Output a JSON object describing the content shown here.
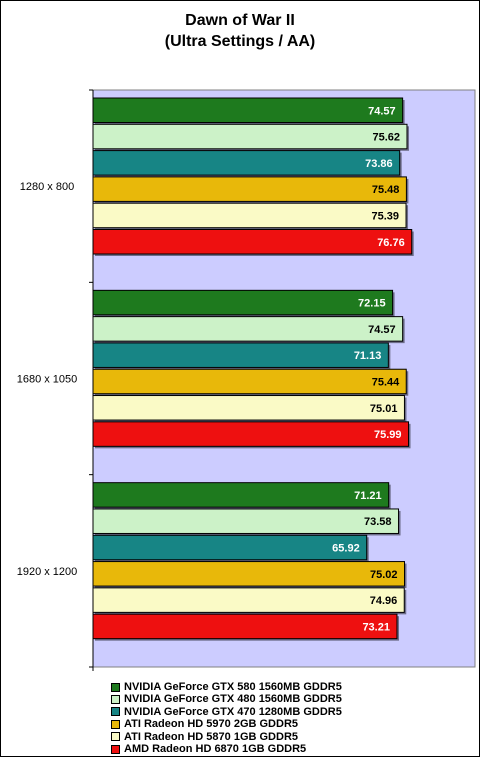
{
  "title": "Dawn of War II",
  "subtitle": "(Ultra Settings / AA)",
  "chart_data": {
    "type": "bar",
    "orientation": "horizontal",
    "categories": [
      "1280 x 800",
      "1680 x 1050",
      "1920 x 1200"
    ],
    "series": [
      {
        "name": "NVIDIA GeForce GTX 580 1560MB GDDR5",
        "color": "#1e7a1e",
        "values": [
          74.57,
          72.15,
          71.21
        ]
      },
      {
        "name": "NVIDIA GeForce GTX 480 1560MB GDDR5",
        "color": "#ccf2c8",
        "values": [
          75.62,
          74.57,
          73.58
        ]
      },
      {
        "name": "NVIDIA GeForce GTX 470 1280MB GDDR5",
        "color": "#178585",
        "values": [
          73.86,
          71.13,
          65.92
        ]
      },
      {
        "name": "ATI Radeon HD 5970 2GB GDDR5",
        "color": "#e8b80a",
        "values": [
          75.48,
          75.44,
          75.02
        ]
      },
      {
        "name": "ATI Radeon HD 5870 1GB GDDR5",
        "color": "#fafac6",
        "values": [
          75.39,
          75.01,
          74.96
        ]
      },
      {
        "name": "AMD Radeon HD 6870 1GB GDDR5",
        "color": "#ee1010",
        "values": [
          76.76,
          75.99,
          73.21
        ]
      }
    ],
    "value_label_colors": [
      "#ffffff",
      "#000000",
      "#ffffff",
      "#000000",
      "#000000",
      "#ffffff"
    ],
    "xlim": [
      0,
      92
    ],
    "plot_background": "#ccccff",
    "grid": false,
    "legend_position": "bottom"
  }
}
